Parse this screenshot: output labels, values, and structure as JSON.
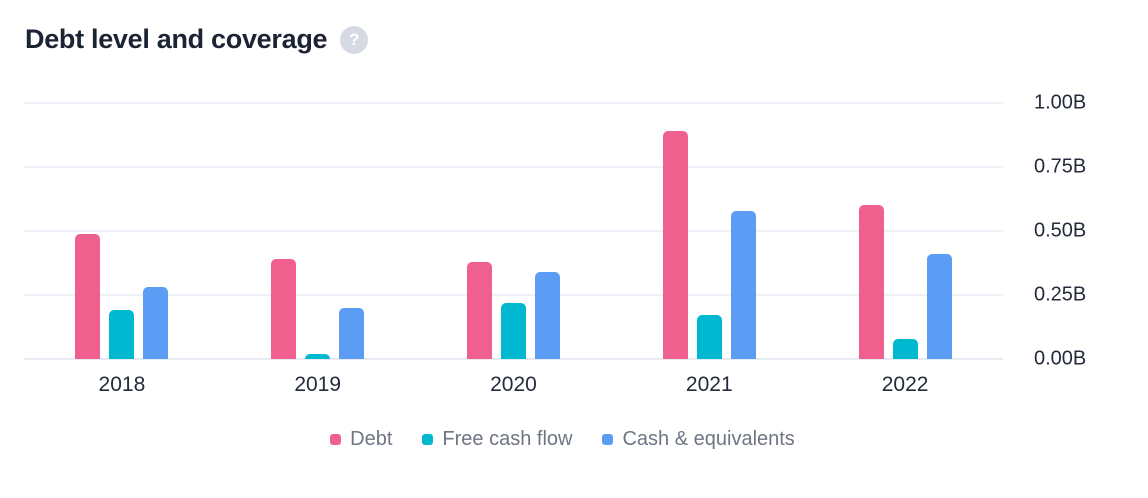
{
  "header": {
    "title": "Debt level and coverage",
    "help_icon": "?"
  },
  "colors": {
    "debt": "#f0608f",
    "free_cash_flow": "#00b9d1",
    "cash_equivalents": "#5b9cf5",
    "gridline": "#eef2f8",
    "baseline": "#e6ebf2",
    "axis_text": "#242b3b",
    "legend_text": "#6e7583",
    "title_text": "#1c2333",
    "help_bg": "#d6dae2"
  },
  "chart_data": {
    "type": "bar",
    "title": "Debt level and coverage",
    "categories": [
      "2018",
      "2019",
      "2020",
      "2021",
      "2022"
    ],
    "series": [
      {
        "name": "Debt",
        "color": "#f0608f",
        "values": [
          0.49,
          0.39,
          0.38,
          0.89,
          0.6
        ]
      },
      {
        "name": "Free cash flow",
        "color": "#00b9d1",
        "values": [
          0.19,
          0.02,
          0.22,
          0.17,
          0.08
        ]
      },
      {
        "name": "Cash & equivalents",
        "color": "#5b9cf5",
        "values": [
          0.28,
          0.2,
          0.34,
          0.58,
          0.41
        ]
      }
    ],
    "unit": "B",
    "ylim": [
      0,
      1.0
    ],
    "ytick_values": [
      1.0,
      0.75,
      0.5,
      0.25,
      0.0
    ],
    "ytick_labels": [
      "1.00B",
      "0.75B",
      "0.50B",
      "0.25B",
      "0.00B"
    ],
    "grid": true,
    "legend_position": "bottom",
    "yaxis_position": "right"
  }
}
